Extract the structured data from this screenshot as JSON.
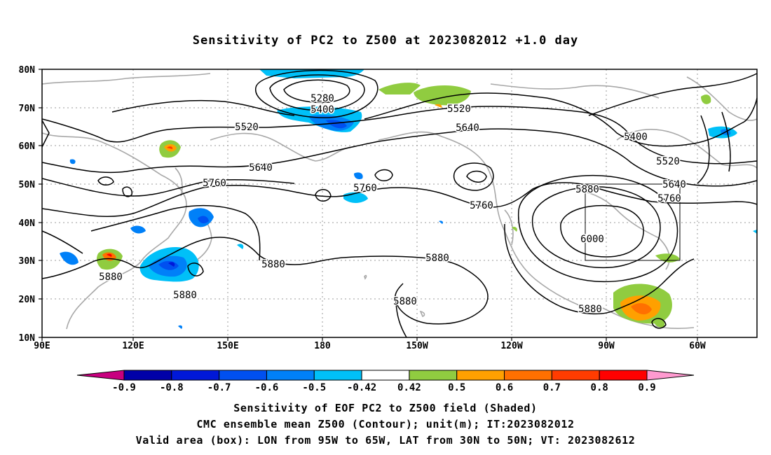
{
  "title": "Sensitivity of PC2 to Z500 at 2023082012 +1.0 day",
  "map": {
    "lat_labels": [
      "80N",
      "70N",
      "60N",
      "50N",
      "40N",
      "30N",
      "20N",
      "10N"
    ],
    "lon_labels": [
      "90E",
      "120E",
      "150E",
      "180",
      "150W",
      "120W",
      "90W",
      "60W"
    ],
    "contour_labels": [
      {
        "text": "5280"
      },
      {
        "text": "5400"
      },
      {
        "text": "5520"
      },
      {
        "text": "5520"
      },
      {
        "text": "5640"
      },
      {
        "text": "5640"
      },
      {
        "text": "5400"
      },
      {
        "text": "5520"
      },
      {
        "text": "5760"
      },
      {
        "text": "5760"
      },
      {
        "text": "5640"
      },
      {
        "text": "5880"
      },
      {
        "text": "5760"
      },
      {
        "text": "5760"
      },
      {
        "text": "6000"
      },
      {
        "text": "5880"
      },
      {
        "text": "5880"
      },
      {
        "text": "5880"
      },
      {
        "text": "5880"
      },
      {
        "text": "5880"
      },
      {
        "text": "5880"
      }
    ]
  },
  "colorbar": {
    "labels": [
      "-0.9",
      "-0.8",
      "-0.7",
      "-0.6",
      "-0.5",
      "-0.42",
      "0.42",
      "0.5",
      "0.6",
      "0.7",
      "0.8",
      "0.9"
    ],
    "colors": [
      "#c8007f",
      "#0000a8",
      "#0018d8",
      "#0050f0",
      "#0080f8",
      "#00c0f8",
      "#ffffff",
      "#90cc40",
      "#ffa000",
      "#ff7000",
      "#ff3c00",
      "#ff0000",
      "#ff9ad0"
    ]
  },
  "captions": {
    "line1": "Sensitivity of EOF PC2 to Z500 field (Shaded)",
    "line2": "CMC ensemble mean Z500 (Contour); unit(m); IT:2023082012",
    "line3": "Valid area (box): LON from 95W to 65W, LAT from 30N to 50N; VT: 2023082612"
  }
}
